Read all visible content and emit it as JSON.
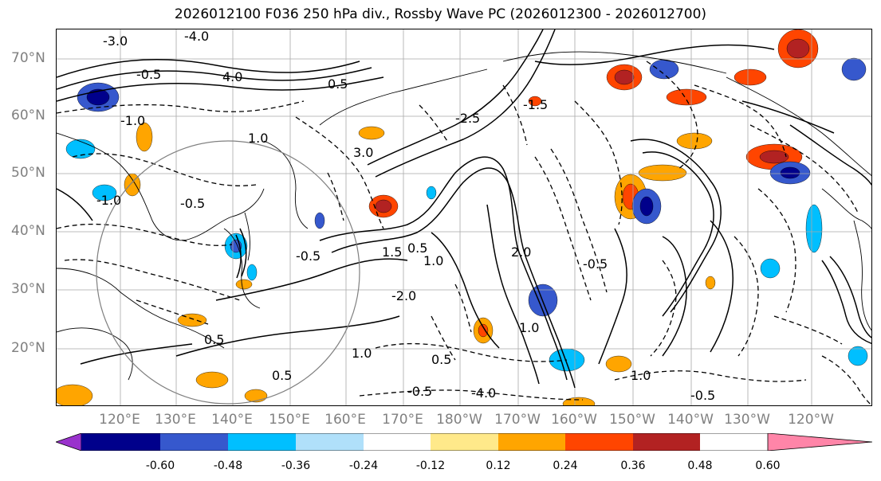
{
  "title": "2026012100 F036 250 hPa div., Rossby Wave PC (2026012300 - 2026012700)",
  "map": {
    "lat_labels": [
      "70°N",
      "60°N",
      "50°N",
      "40°N",
      "30°N",
      "20°N"
    ],
    "lon_labels": [
      "120°E",
      "130°E",
      "140°E",
      "150°E",
      "160°E",
      "170°E",
      "180°W",
      "170°W",
      "160°W",
      "150°W",
      "140°W",
      "130°W",
      "120°W"
    ],
    "contour_labels": [
      "-3.0",
      "-4.0",
      "-0.5",
      "4.0",
      "-1.0",
      "1.0",
      "-0.5",
      "0.5",
      "-2.5",
      "-1.5",
      "3.0",
      "0.5",
      "1.5",
      "1.0",
      "-0.5",
      "-1.0",
      "-2.0",
      "2.0",
      "1.0",
      "-0.5",
      "0.5",
      "1.0",
      "0.5",
      "0.5",
      "1.0",
      "-0.5",
      "-4.0",
      "-0.5"
    ],
    "colors": {
      "coast": "#000000",
      "grid": "#a9a9a9",
      "circle": "#808080"
    }
  },
  "colorbar": {
    "colors": [
      "#9932cc",
      "#00008b",
      "#3658cd",
      "#00bfff",
      "#b0e0fa",
      "#ffffff",
      "#ffe98a",
      "#ffa500",
      "#ff4500",
      "#b22222",
      "#ff85a8"
    ],
    "tick_labels": [
      "-0.60",
      "-0.48",
      "-0.36",
      "-0.24",
      "-0.12",
      "0.12",
      "0.24",
      "0.36",
      "0.48",
      "0.60"
    ]
  }
}
